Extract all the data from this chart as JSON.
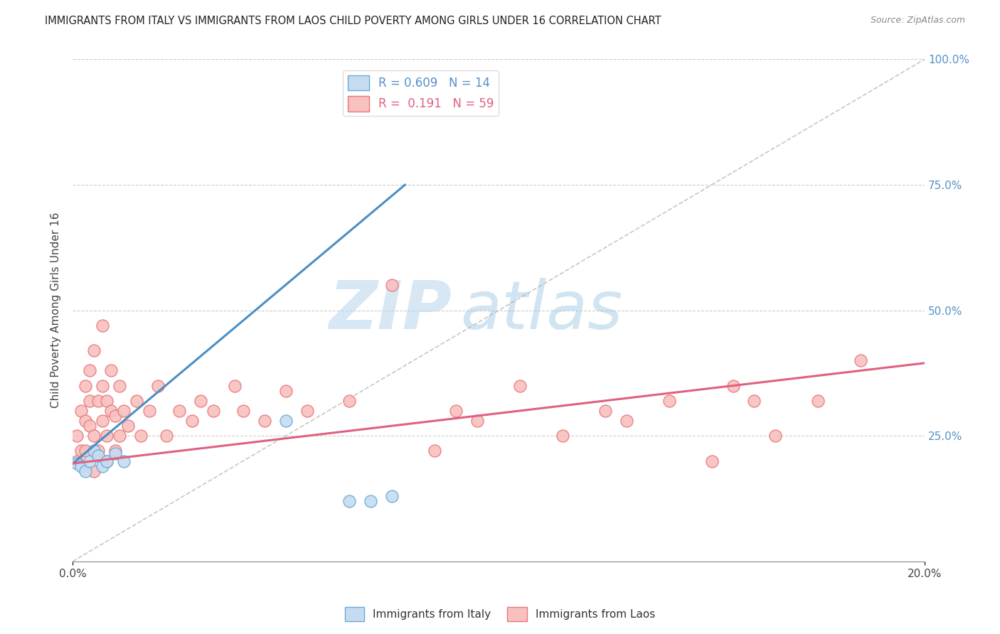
{
  "title": "IMMIGRANTS FROM ITALY VS IMMIGRANTS FROM LAOS CHILD POVERTY AMONG GIRLS UNDER 16 CORRELATION CHART",
  "source": "Source: ZipAtlas.com",
  "ylabel": "Child Poverty Among Girls Under 16",
  "xlim": [
    0.0,
    0.2
  ],
  "ylim": [
    0.0,
    1.0
  ],
  "italy_R": 0.609,
  "italy_N": 14,
  "laos_R": 0.191,
  "laos_N": 59,
  "italy_color": "#c5dcf0",
  "laos_color": "#f9c0c0",
  "italy_edge_color": "#6aaad4",
  "laos_edge_color": "#e87878",
  "italy_line_color": "#4a8fc4",
  "laos_line_color": "#e06080",
  "diag_line_color": "#b8b8b8",
  "italy_line_x0": 0.0,
  "italy_line_y0": 0.195,
  "italy_line_x1": 0.078,
  "italy_line_y1": 0.75,
  "laos_line_x0": 0.0,
  "laos_line_y0": 0.195,
  "laos_line_x1": 0.2,
  "laos_line_y1": 0.395,
  "italy_points_x": [
    0.001,
    0.002,
    0.003,
    0.004,
    0.005,
    0.006,
    0.007,
    0.008,
    0.01,
    0.012,
    0.05,
    0.065,
    0.07,
    0.075
  ],
  "italy_points_y": [
    0.195,
    0.19,
    0.18,
    0.2,
    0.22,
    0.21,
    0.19,
    0.2,
    0.215,
    0.2,
    0.28,
    0.12,
    0.12,
    0.13
  ],
  "laos_points_x": [
    0.001,
    0.001,
    0.002,
    0.002,
    0.003,
    0.003,
    0.003,
    0.004,
    0.004,
    0.004,
    0.005,
    0.005,
    0.005,
    0.006,
    0.006,
    0.007,
    0.007,
    0.007,
    0.008,
    0.008,
    0.008,
    0.009,
    0.009,
    0.01,
    0.01,
    0.011,
    0.011,
    0.012,
    0.013,
    0.015,
    0.016,
    0.018,
    0.02,
    0.022,
    0.025,
    0.028,
    0.03,
    0.033,
    0.038,
    0.04,
    0.045,
    0.05,
    0.055,
    0.065,
    0.075,
    0.085,
    0.09,
    0.095,
    0.105,
    0.115,
    0.125,
    0.13,
    0.14,
    0.15,
    0.155,
    0.16,
    0.165,
    0.175,
    0.185
  ],
  "laos_points_y": [
    0.2,
    0.25,
    0.22,
    0.3,
    0.22,
    0.28,
    0.35,
    0.27,
    0.32,
    0.38,
    0.18,
    0.25,
    0.42,
    0.22,
    0.32,
    0.35,
    0.28,
    0.47,
    0.25,
    0.32,
    0.2,
    0.3,
    0.38,
    0.22,
    0.29,
    0.25,
    0.35,
    0.3,
    0.27,
    0.32,
    0.25,
    0.3,
    0.35,
    0.25,
    0.3,
    0.28,
    0.32,
    0.3,
    0.35,
    0.3,
    0.28,
    0.34,
    0.3,
    0.32,
    0.55,
    0.22,
    0.3,
    0.28,
    0.35,
    0.25,
    0.3,
    0.28,
    0.32,
    0.2,
    0.35,
    0.32,
    0.25,
    0.32,
    0.4
  ],
  "watermark_zip": "ZIP",
  "watermark_atlas": "atlas",
  "background_color": "#ffffff"
}
